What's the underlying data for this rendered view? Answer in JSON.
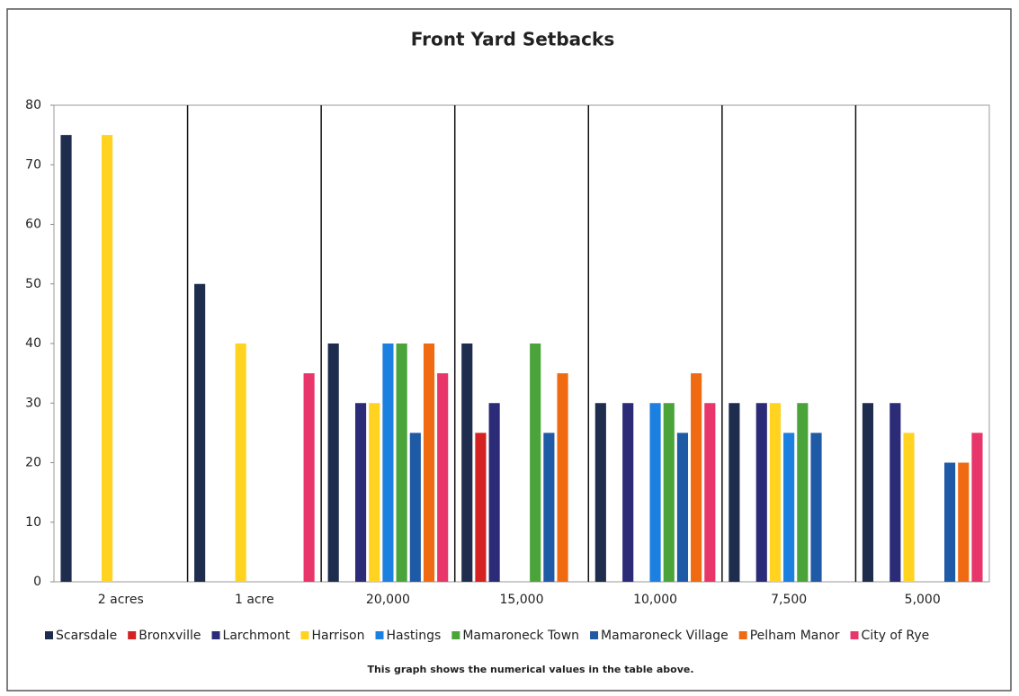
{
  "chart_data": {
    "type": "bar",
    "title": "Front Yard Setbacks",
    "note": "This graph shows the numerical values in the table above.",
    "categories": [
      "2 acres",
      "1 acre",
      "20,000",
      "15,000",
      "10,000",
      "7,500",
      "5,000"
    ],
    "series": [
      {
        "name": "Scarsdale",
        "color": "#1e2d4d",
        "values": [
          75,
          50,
          40,
          40,
          30,
          30,
          30
        ]
      },
      {
        "name": "Bronxville",
        "color": "#d42222",
        "values": [
          null,
          null,
          null,
          25,
          null,
          null,
          null
        ]
      },
      {
        "name": "Larchmont",
        "color": "#2b2b78",
        "values": [
          null,
          null,
          30,
          30,
          30,
          30,
          30
        ]
      },
      {
        "name": "Harrison",
        "color": "#ffd320",
        "values": [
          75,
          40,
          30,
          null,
          null,
          30,
          25
        ]
      },
      {
        "name": "Hastings",
        "color": "#1c80e0",
        "values": [
          null,
          null,
          40,
          null,
          30,
          25,
          null
        ]
      },
      {
        "name": "Mamaroneck Town",
        "color": "#4ba43a",
        "values": [
          null,
          null,
          40,
          40,
          30,
          30,
          null
        ]
      },
      {
        "name": "Mamaroneck Village",
        "color": "#1f5aa6",
        "values": [
          null,
          null,
          25,
          25,
          25,
          25,
          20
        ]
      },
      {
        "name": "Pelham Manor",
        "color": "#f06a12",
        "values": [
          null,
          null,
          40,
          35,
          35,
          null,
          20
        ]
      },
      {
        "name": "City of Rye",
        "color": "#e8366b",
        "values": [
          null,
          35,
          35,
          null,
          30,
          null,
          25
        ]
      }
    ],
    "ylim": [
      0,
      80
    ],
    "yticks": [
      0,
      10,
      20,
      30,
      40,
      50,
      60,
      70,
      80
    ]
  }
}
